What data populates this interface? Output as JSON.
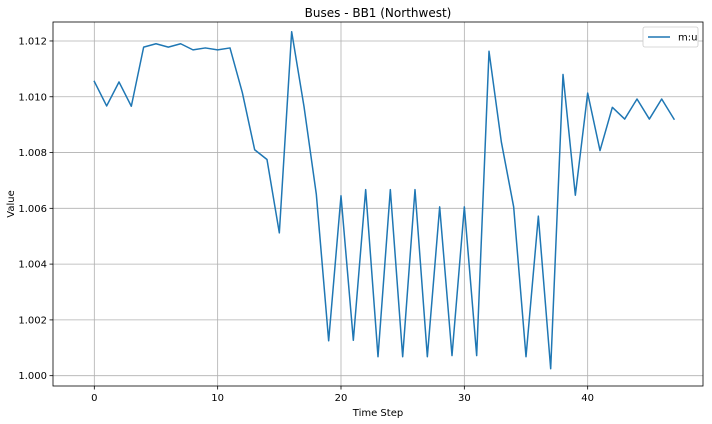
{
  "chart_data": {
    "type": "line",
    "title": "Buses - BB1 (Northwest)",
    "xlabel": "Time Step",
    "ylabel": "Value",
    "xlim": [
      -3.35,
      49.35
    ],
    "ylim": [
      0.99963,
      1.01268
    ],
    "xticks": [
      0,
      10,
      20,
      30,
      40
    ],
    "xtick_labels": [
      "0",
      "10",
      "20",
      "30",
      "40"
    ],
    "yticks": [
      1.0,
      1.002,
      1.004,
      1.006,
      1.008,
      1.01,
      1.012
    ],
    "ytick_labels": [
      "1.000",
      "1.002",
      "1.004",
      "1.006",
      "1.008",
      "1.010",
      "1.012"
    ],
    "grid": true,
    "legend_position": "top-right",
    "series": [
      {
        "name": "m:u",
        "color": "#1f77b4",
        "x": [
          0,
          1,
          2,
          3,
          4,
          5,
          6,
          7,
          8,
          9,
          10,
          11,
          12,
          13,
          14,
          15,
          16,
          17,
          18,
          19,
          20,
          21,
          22,
          23,
          24,
          25,
          26,
          27,
          28,
          29,
          30,
          31,
          32,
          33,
          34,
          35,
          36,
          37,
          38,
          39,
          40,
          41,
          42,
          43,
          44,
          45,
          46,
          47
        ],
        "y": [
          1.01055,
          1.00967,
          1.01053,
          1.00966,
          1.01178,
          1.0119,
          1.01178,
          1.0119,
          1.01168,
          1.01175,
          1.01168,
          1.01175,
          1.01015,
          1.0081,
          1.00775,
          1.00512,
          1.01233,
          1.00965,
          1.0065,
          1.00125,
          1.00645,
          1.00127,
          1.00667,
          1.00068,
          1.00667,
          1.00068,
          1.00667,
          1.00068,
          1.00605,
          1.00072,
          1.00605,
          1.00072,
          1.01163,
          1.00838,
          1.00605,
          1.00068,
          1.00572,
          1.00025,
          1.0108,
          1.00647,
          1.01013,
          1.00807,
          1.00962,
          1.0092,
          1.00992,
          1.0092,
          1.00992,
          1.0092
        ]
      }
    ]
  }
}
